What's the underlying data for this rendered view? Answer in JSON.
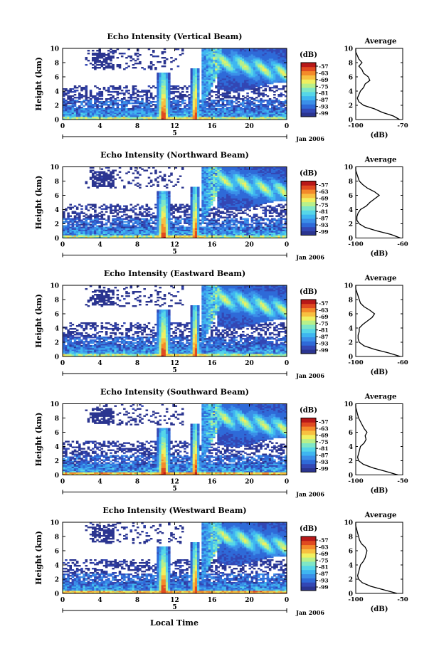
{
  "figure": {
    "xlabel": "Local Time",
    "date_label": "Jan 2006",
    "day_marker": "5",
    "colorbar_unit": "(dB)",
    "colorbar_ticks": [
      "-57",
      "-63",
      "-69",
      "-75",
      "-81",
      "-87",
      "-93",
      "-99"
    ],
    "colors": {
      "levels": [
        "#2b3590",
        "#3347b4",
        "#2f6ad8",
        "#3b8fe8",
        "#3fb6f0",
        "#56d6e8",
        "#7fe7c6",
        "#b8f08a",
        "#f0f060",
        "#f8c040",
        "#f48a2a",
        "#e04a20",
        "#b81818"
      ],
      "line": "#000000"
    }
  },
  "chart_data": [
    {
      "type": "heatmap",
      "title": "Echo Intensity (Vertical Beam)",
      "ylabel": "Height (km)",
      "x_ticks": [
        "0",
        "4",
        "8",
        "12",
        "16",
        "20",
        "0"
      ],
      "y_ticks": [
        "0",
        "2",
        "4",
        "6",
        "8",
        "10"
      ],
      "xlim": [
        0,
        24
      ],
      "ylim": [
        0,
        10
      ],
      "profile": {
        "title": "Average",
        "xlabel": "(dB)",
        "x_ticks": [
          "-100",
          "-70"
        ],
        "xlim": [
          -100,
          -70
        ],
        "heights": [
          0,
          0.5,
          1,
          1.5,
          2,
          2.5,
          3,
          3.5,
          4,
          4.5,
          5,
          5.5,
          6,
          6.5,
          7,
          7.5,
          8,
          8.5,
          9,
          9.5,
          10
        ],
        "values": [
          -72,
          -76,
          -83,
          -88,
          -95,
          -98,
          -99,
          -98,
          -97,
          -95,
          -94,
          -91,
          -92,
          -95,
          -96,
          -98,
          -96,
          -98,
          -99,
          -100,
          -100
        ]
      }
    },
    {
      "type": "heatmap",
      "title": "Echo Intensity (Northward Beam)",
      "ylabel": "Height (km)",
      "x_ticks": [
        "0",
        "4",
        "8",
        "12",
        "16",
        "20",
        "0"
      ],
      "y_ticks": [
        "0",
        "2",
        "4",
        "6",
        "8",
        "10"
      ],
      "xlim": [
        0,
        24
      ],
      "ylim": [
        0,
        10
      ],
      "profile": {
        "title": "Average",
        "xlabel": "(dB)",
        "x_ticks": [
          "-100",
          "-60"
        ],
        "xlim": [
          -100,
          -60
        ],
        "heights": [
          0,
          0.5,
          1,
          1.5,
          2,
          2.5,
          3,
          3.5,
          4,
          4.5,
          5,
          5.5,
          6,
          6.5,
          7,
          7.5,
          8,
          8.5,
          9,
          9.5,
          10
        ],
        "values": [
          -62,
          -70,
          -82,
          -92,
          -97,
          -99,
          -99,
          -98,
          -96,
          -91,
          -88,
          -84,
          -80,
          -84,
          -90,
          -94,
          -97,
          -98,
          -99,
          -100,
          -100
        ]
      }
    },
    {
      "type": "heatmap",
      "title": "Echo Intensity (Eastward Beam)",
      "ylabel": "Height (km)",
      "x_ticks": [
        "0",
        "4",
        "8",
        "12",
        "16",
        "20",
        "0"
      ],
      "y_ticks": [
        "0",
        "2",
        "4",
        "6",
        "8",
        "10"
      ],
      "xlim": [
        0,
        24
      ],
      "ylim": [
        0,
        10
      ],
      "profile": {
        "title": "Average",
        "xlabel": "(dB)",
        "x_ticks": [
          "-100",
          "-60"
        ],
        "xlim": [
          -100,
          -60
        ],
        "heights": [
          0,
          0.5,
          1,
          1.5,
          2,
          2.5,
          3,
          3.5,
          4,
          4.5,
          5,
          5.5,
          6,
          6.5,
          7,
          7.5,
          8,
          8.5,
          9,
          9.5,
          10
        ],
        "values": [
          -62,
          -72,
          -84,
          -93,
          -97,
          -98,
          -98,
          -97,
          -97,
          -94,
          -90,
          -86,
          -84,
          -88,
          -93,
          -96,
          -97,
          -98,
          -99,
          -100,
          -100
        ]
      }
    },
    {
      "type": "heatmap",
      "title": "Echo Intensity (Southward Beam)",
      "ylabel": "Height (km)",
      "x_ticks": [
        "0",
        "4",
        "8",
        "12",
        "16",
        "20",
        "0"
      ],
      "y_ticks": [
        "0",
        "2",
        "4",
        "6",
        "8",
        "10"
      ],
      "xlim": [
        0,
        24
      ],
      "ylim": [
        0,
        10
      ],
      "profile": {
        "title": "Average",
        "xlabel": "(dB)",
        "x_ticks": [
          "-100",
          "-50"
        ],
        "xlim": [
          -100,
          -50
        ],
        "heights": [
          0,
          0.5,
          1,
          1.5,
          2,
          2.5,
          3,
          3.5,
          4,
          4.5,
          5,
          5.5,
          6,
          6.5,
          7,
          7.5,
          8,
          8.5,
          9,
          9.5,
          10
        ],
        "values": [
          -55,
          -68,
          -82,
          -92,
          -97,
          -98,
          -97,
          -96,
          -95,
          -91,
          -89,
          -90,
          -88,
          -91,
          -93,
          -95,
          -97,
          -98,
          -99,
          -100,
          -100
        ]
      }
    },
    {
      "type": "heatmap",
      "title": "Echo Intensity (Westward Beam)",
      "ylabel": "Height (km)",
      "x_ticks": [
        "0",
        "4",
        "8",
        "12",
        "16",
        "20",
        "0"
      ],
      "y_ticks": [
        "0",
        "2",
        "4",
        "6",
        "8",
        "10"
      ],
      "xlim": [
        0,
        24
      ],
      "ylim": [
        0,
        10
      ],
      "profile": {
        "title": "Average",
        "xlabel": "(dB)",
        "x_ticks": [
          "-100",
          "-50"
        ],
        "xlim": [
          -100,
          -50
        ],
        "heights": [
          0,
          0.5,
          1,
          1.5,
          2,
          2.5,
          3,
          3.5,
          4,
          4.5,
          5,
          5.5,
          6,
          6.5,
          7,
          7.5,
          8,
          8.5,
          9,
          9.5,
          10
        ],
        "values": [
          -56,
          -70,
          -84,
          -93,
          -97,
          -98,
          -97,
          -96,
          -95,
          -92,
          -90,
          -89,
          -88,
          -90,
          -94,
          -96,
          -97,
          -98,
          -99,
          -100,
          -100
        ]
      }
    }
  ]
}
